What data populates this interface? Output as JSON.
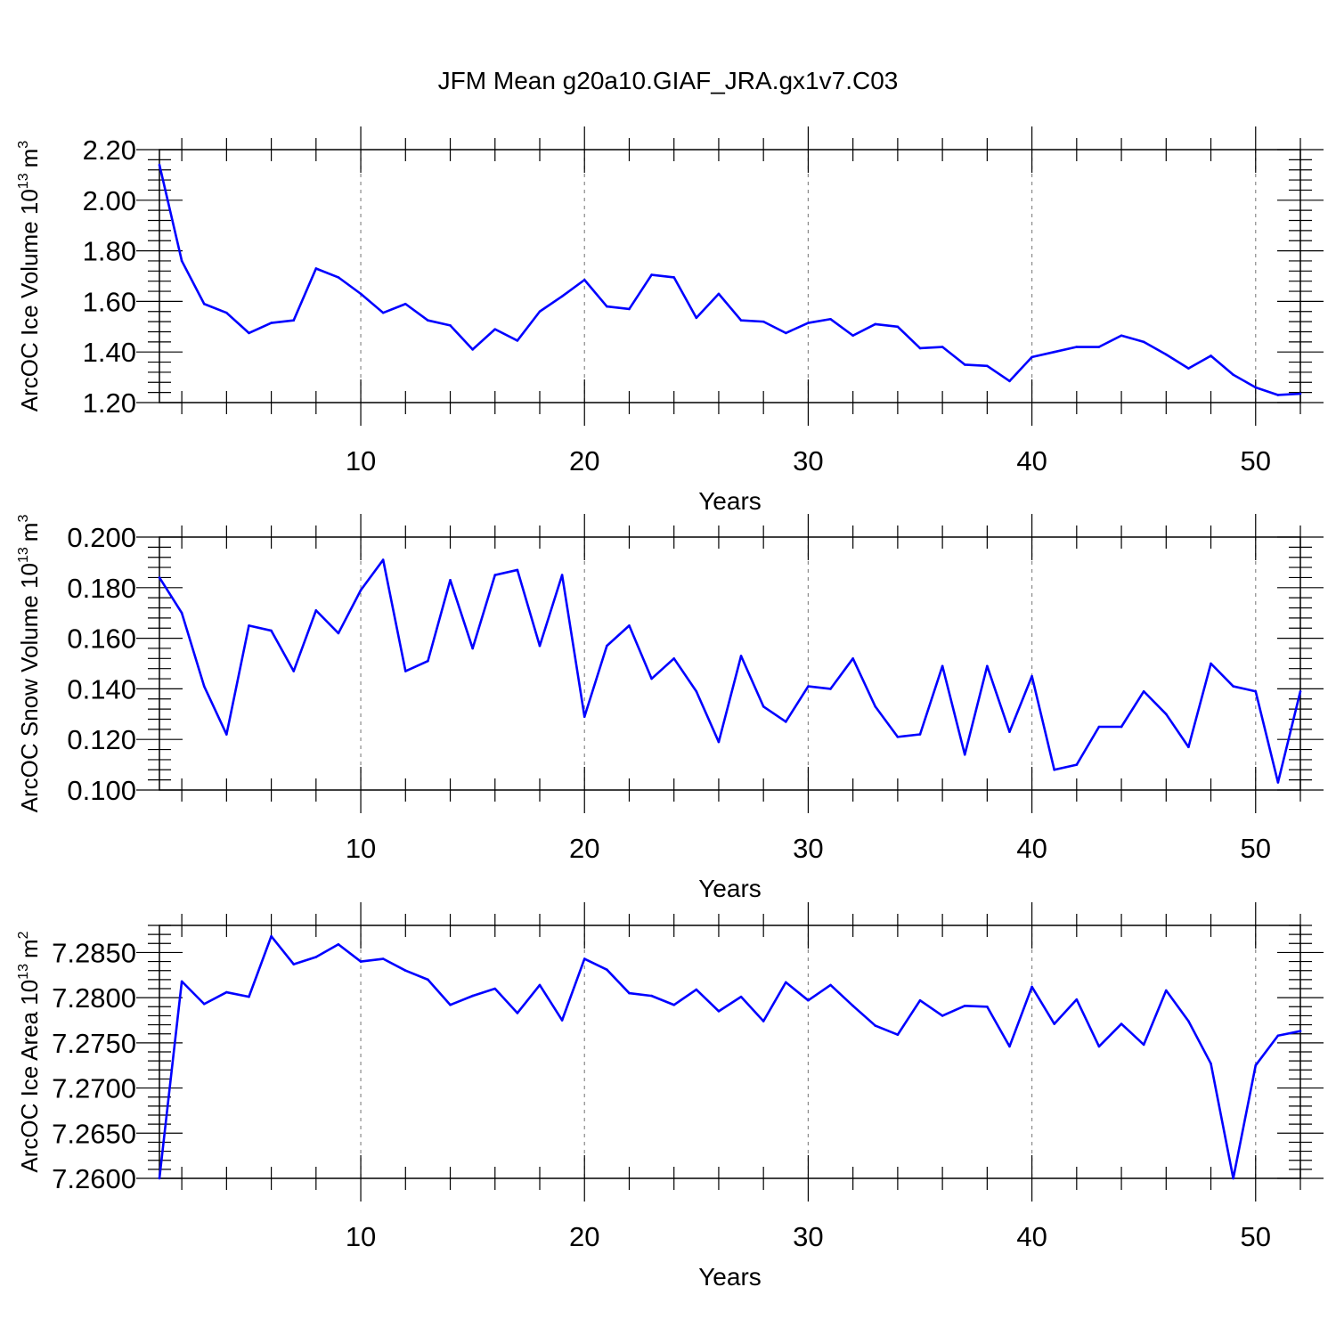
{
  "colors": {
    "series": "#0000ff",
    "grid": "#8a8a8a",
    "axis": "#000000"
  },
  "chart_data": [
    {
      "type": "line",
      "title": "JFM Mean g20a10.GIAF_JRA.gx1v7.C03",
      "xlabel": "Years",
      "ylabel": "ArcOC Ice Volume 10",
      "ylabel_exponent": "13",
      "ylabel_unit": "m",
      "ylabel_unit_exponent": "3",
      "xlim": [
        1,
        52
      ],
      "ylim": [
        1.2,
        2.2
      ],
      "grid": "vertical dashed at major x ticks",
      "xticks": [
        10,
        20,
        30,
        40,
        50
      ],
      "xtick_labels": [
        "10",
        "20",
        "30",
        "40",
        "50"
      ],
      "yticks": [
        1.2,
        1.4,
        1.6,
        1.8,
        2.0,
        2.2
      ],
      "ytick_labels": [
        "1.20",
        "1.40",
        "1.60",
        "1.80",
        "2.00",
        "2.20"
      ],
      "series": [
        {
          "name": "ArcOC Ice Volume",
          "x": [
            1,
            2,
            3,
            4,
            5,
            6,
            7,
            8,
            9,
            10,
            11,
            12,
            13,
            14,
            15,
            16,
            17,
            18,
            19,
            20,
            21,
            22,
            23,
            24,
            25,
            26,
            27,
            28,
            29,
            30,
            31,
            32,
            33,
            34,
            35,
            36,
            37,
            38,
            39,
            40,
            41,
            42,
            43,
            44,
            45,
            46,
            47,
            48,
            49,
            50,
            51,
            52
          ],
          "values": [
            2.14,
            1.76,
            1.59,
            1.555,
            1.475,
            1.515,
            1.525,
            1.73,
            1.695,
            1.63,
            1.555,
            1.59,
            1.525,
            1.505,
            1.41,
            1.49,
            1.445,
            1.56,
            1.62,
            1.685,
            1.58,
            1.57,
            1.705,
            1.695,
            1.535,
            1.63,
            1.525,
            1.52,
            1.475,
            1.515,
            1.53,
            1.465,
            1.51,
            1.5,
            1.415,
            1.42,
            1.35,
            1.345,
            1.285,
            1.38,
            1.4,
            1.42,
            1.42,
            1.465,
            1.44,
            1.39,
            1.335,
            1.385,
            1.31,
            1.26,
            1.23,
            1.235
          ]
        }
      ]
    },
    {
      "type": "line",
      "xlabel": "Years",
      "ylabel": "ArcOC Snow Volume 10",
      "ylabel_exponent": "13",
      "ylabel_unit": "m",
      "ylabel_unit_exponent": "3",
      "xlim": [
        1,
        52
      ],
      "ylim": [
        0.1,
        0.2
      ],
      "grid": "vertical dashed at major x ticks",
      "xticks": [
        10,
        20,
        30,
        40,
        50
      ],
      "xtick_labels": [
        "10",
        "20",
        "30",
        "40",
        "50"
      ],
      "yticks": [
        0.1,
        0.12,
        0.14,
        0.16,
        0.18,
        0.2
      ],
      "ytick_labels": [
        "0.100",
        "0.120",
        "0.140",
        "0.160",
        "0.180",
        "0.200"
      ],
      "series": [
        {
          "name": "ArcOC Snow Volume",
          "x": [
            1,
            2,
            3,
            4,
            5,
            6,
            7,
            8,
            9,
            10,
            11,
            12,
            13,
            14,
            15,
            16,
            17,
            18,
            19,
            20,
            21,
            22,
            23,
            24,
            25,
            26,
            27,
            28,
            29,
            30,
            31,
            32,
            33,
            34,
            35,
            36,
            37,
            38,
            39,
            40,
            41,
            42,
            43,
            44,
            45,
            46,
            47,
            48,
            49,
            50,
            51,
            52
          ],
          "values": [
            0.184,
            0.17,
            0.141,
            0.122,
            0.165,
            0.163,
            0.147,
            0.171,
            0.162,
            0.179,
            0.191,
            0.147,
            0.151,
            0.183,
            0.156,
            0.185,
            0.187,
            0.157,
            0.185,
            0.129,
            0.157,
            0.165,
            0.144,
            0.152,
            0.139,
            0.119,
            0.153,
            0.133,
            0.127,
            0.141,
            0.14,
            0.152,
            0.133,
            0.121,
            0.122,
            0.149,
            0.114,
            0.149,
            0.123,
            0.145,
            0.108,
            0.11,
            0.125,
            0.125,
            0.139,
            0.13,
            0.117,
            0.15,
            0.141,
            0.139,
            0.103,
            0.139
          ]
        }
      ]
    },
    {
      "type": "line",
      "xlabel": "Years",
      "ylabel": "ArcOC Ice Area 10",
      "ylabel_exponent": "13",
      "ylabel_unit": "m",
      "ylabel_unit_exponent": "2",
      "xlim": [
        1,
        52
      ],
      "ylim": [
        7.26,
        7.288
      ],
      "grid": "vertical dashed at major x ticks",
      "xticks": [
        10,
        20,
        30,
        40,
        50
      ],
      "xtick_labels": [
        "10",
        "20",
        "30",
        "40",
        "50"
      ],
      "yticks": [
        7.26,
        7.265,
        7.27,
        7.275,
        7.28,
        7.285
      ],
      "ytick_labels": [
        "7.2600",
        "7.2650",
        "7.2700",
        "7.2750",
        "7.2800",
        "7.2850"
      ],
      "series": [
        {
          "name": "ArcOC Ice Area",
          "x": [
            1,
            2,
            3,
            4,
            5,
            6,
            7,
            8,
            9,
            10,
            11,
            12,
            13,
            14,
            15,
            16,
            17,
            18,
            19,
            20,
            21,
            22,
            23,
            24,
            25,
            26,
            27,
            28,
            29,
            30,
            31,
            32,
            33,
            34,
            35,
            36,
            37,
            38,
            39,
            40,
            41,
            42,
            43,
            44,
            45,
            46,
            47,
            48,
            49,
            50,
            51,
            52
          ],
          "values": [
            7.26,
            7.2818,
            7.2793,
            7.2806,
            7.2801,
            7.2868,
            7.2837,
            7.2845,
            7.2859,
            7.284,
            7.2843,
            7.283,
            7.282,
            7.2792,
            7.2802,
            7.281,
            7.2783,
            7.2814,
            7.2775,
            7.2843,
            7.2831,
            7.2805,
            7.2802,
            7.2792,
            7.2809,
            7.2785,
            7.2801,
            7.2774,
            7.2817,
            7.2797,
            7.2814,
            7.2791,
            7.2769,
            7.2759,
            7.2797,
            7.278,
            7.2791,
            7.279,
            7.2746,
            7.2812,
            7.2771,
            7.2798,
            7.2746,
            7.2771,
            7.2748,
            7.2808,
            7.2774,
            7.2727,
            7.26,
            7.2725,
            7.2758,
            7.2763
          ]
        }
      ]
    }
  ]
}
